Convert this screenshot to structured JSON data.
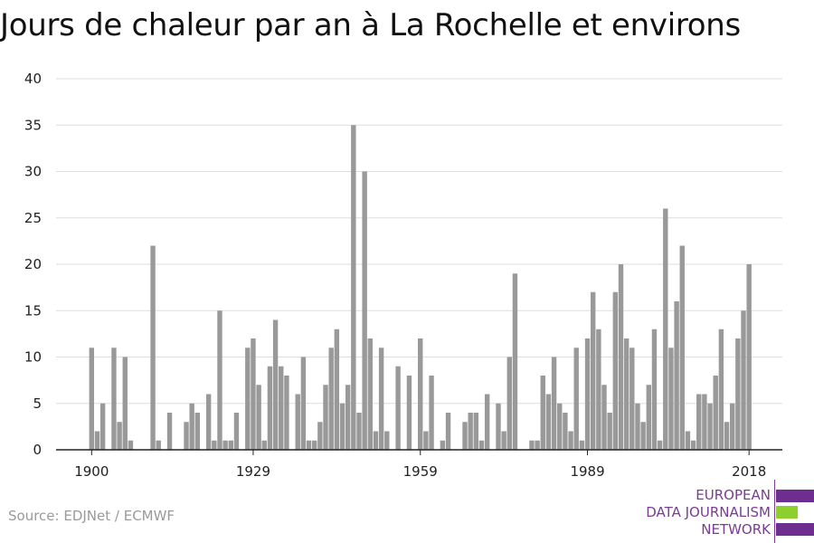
{
  "title": "Jours de chaleur par an à La Rochelle et environs",
  "source": "Source: EDJNet / ECMWF",
  "logo": {
    "lines": [
      "EUROPEAN",
      "DATA JOURNALISM",
      "NETWORK"
    ],
    "colors": {
      "purple": "#6d2e8f",
      "green": "#8ccf2e"
    }
  },
  "colors": {
    "bar": "#999999",
    "grid": "#dddddd",
    "axis": "#222222"
  },
  "chart_data": {
    "type": "bar",
    "title": "Jours de chaleur par an à La Rochelle et environs",
    "xlabel": "",
    "ylabel": "",
    "ylim": [
      0,
      40
    ],
    "yticks": [
      0,
      5,
      10,
      15,
      20,
      25,
      30,
      35,
      40
    ],
    "xticks": [
      "1900",
      "1929",
      "1959",
      "1989",
      "2018"
    ],
    "grid": true,
    "categories": [
      1900,
      1901,
      1902,
      1903,
      1904,
      1905,
      1906,
      1907,
      1908,
      1909,
      1910,
      1911,
      1912,
      1913,
      1914,
      1915,
      1916,
      1917,
      1918,
      1919,
      1920,
      1921,
      1922,
      1923,
      1924,
      1925,
      1926,
      1927,
      1928,
      1929,
      1930,
      1931,
      1932,
      1933,
      1934,
      1935,
      1936,
      1937,
      1938,
      1939,
      1940,
      1941,
      1942,
      1943,
      1944,
      1945,
      1946,
      1947,
      1948,
      1949,
      1950,
      1951,
      1952,
      1953,
      1954,
      1955,
      1956,
      1957,
      1958,
      1959,
      1960,
      1961,
      1962,
      1963,
      1964,
      1965,
      1966,
      1967,
      1968,
      1969,
      1970,
      1971,
      1972,
      1973,
      1974,
      1975,
      1976,
      1977,
      1978,
      1979,
      1980,
      1981,
      1982,
      1983,
      1984,
      1985,
      1986,
      1987,
      1988,
      1989,
      1990,
      1991,
      1992,
      1993,
      1994,
      1995,
      1996,
      1997,
      1998,
      1999,
      2000,
      2001,
      2002,
      2003,
      2004,
      2005,
      2006,
      2007,
      2008,
      2009,
      2010,
      2011,
      2012,
      2013,
      2014,
      2015,
      2016,
      2017,
      2018
    ],
    "values": [
      11,
      2,
      5,
      0,
      11,
      3,
      10,
      1,
      0,
      0,
      0,
      22,
      1,
      0,
      4,
      0,
      0,
      3,
      5,
      4,
      0,
      6,
      1,
      15,
      1,
      1,
      4,
      0,
      11,
      12,
      7,
      1,
      9,
      14,
      9,
      8,
      0,
      6,
      10,
      1,
      1,
      3,
      7,
      11,
      13,
      5,
      7,
      35,
      4,
      30,
      12,
      2,
      11,
      2,
      0,
      9,
      0,
      8,
      0,
      12,
      2,
      8,
      0,
      1,
      4,
      0,
      0,
      3,
      4,
      4,
      1,
      6,
      0,
      5,
      2,
      10,
      19,
      0,
      0,
      1,
      1,
      8,
      6,
      10,
      5,
      4,
      2,
      11,
      1,
      12,
      17,
      13,
      7,
      4,
      17,
      20,
      12,
      11,
      5,
      3,
      7,
      13,
      1,
      26,
      11,
      16,
      22,
      2,
      1,
      6,
      6,
      5,
      8,
      13,
      3,
      5,
      12,
      15,
      20
    ]
  }
}
